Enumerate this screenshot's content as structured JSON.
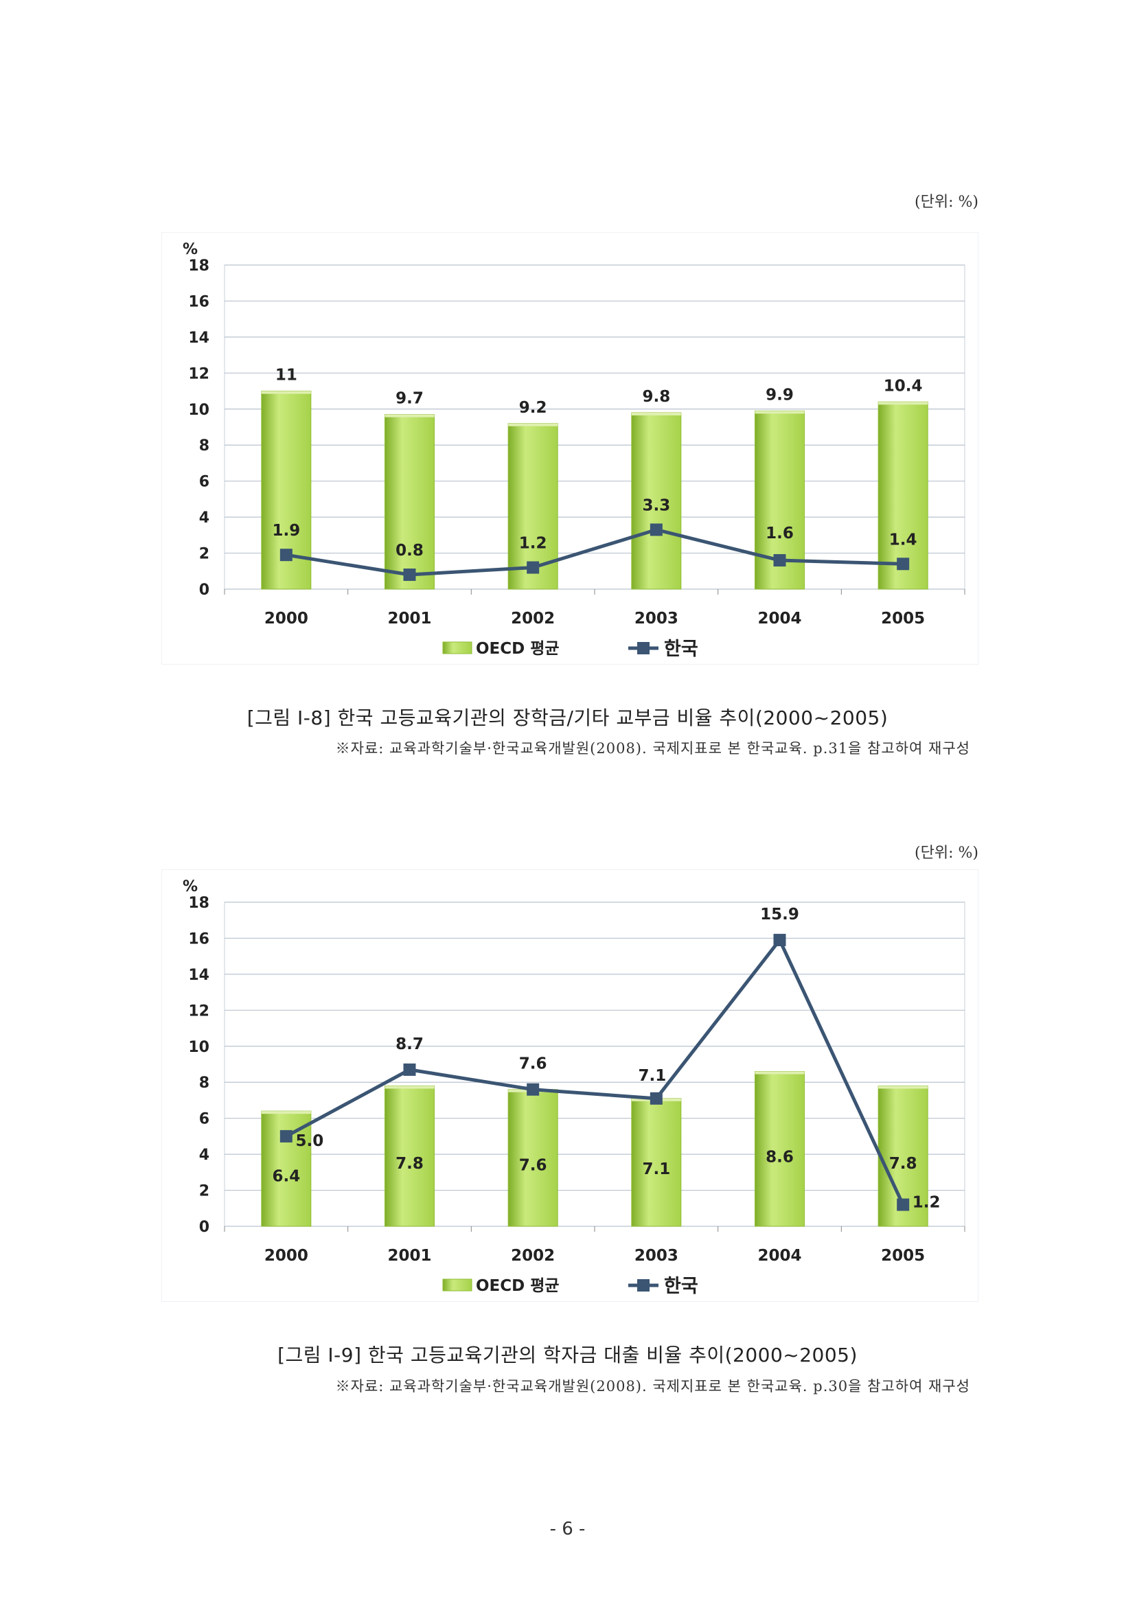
{
  "unit_label_1": "(단위: %)",
  "unit_label_2": "(단위: %)",
  "caption_1": "[그림 Ⅰ-8] 한국 고등교육기관의 장학금/기타 교부금 비율 추이(2000~2005)",
  "source_1": "※자료: 교육과학기술부·한국교육개발원(2008). 국제지표로 본 한국교육. p.31을 참고하여 재구성",
  "caption_2": "[그림 Ⅰ-9] 한국 고등교육기관의 학자금 대출 비율 추이(2000~2005)",
  "source_2": "※자료: 교육과학기술부·한국교육개발원(2008). 국제지표로 본 한국교육. p.30을 참고하여 재구성",
  "page_number": "- 6 -",
  "colors": {
    "bar": "#a6d24a",
    "bar_dark": "#7fae28",
    "line": "#3b5573",
    "grid": "#b9c3cf"
  },
  "chart_data": [
    {
      "type": "bar",
      "ylabel": "%",
      "ylim": [
        0,
        18
      ],
      "yticks": [
        0,
        2,
        4,
        6,
        8,
        10,
        12,
        14,
        16,
        18
      ],
      "categories": [
        "2000",
        "2001",
        "2002",
        "2003",
        "2004",
        "2005"
      ],
      "series": [
        {
          "name": "OECD 평균",
          "kind": "bar",
          "values": [
            11,
            9.7,
            9.2,
            9.8,
            9.9,
            10.4
          ],
          "labels": [
            "11",
            "9.7",
            "9.2",
            "9.8",
            "9.9",
            "10.4"
          ]
        },
        {
          "name": "한국",
          "kind": "line",
          "values": [
            1.9,
            0.8,
            1.2,
            3.3,
            1.6,
            1.4
          ],
          "labels": [
            "1.9",
            "0.8",
            "1.2",
            "3.3",
            "1.6",
            "1.4"
          ]
        }
      ],
      "legend": "bottom",
      "grid": true
    },
    {
      "type": "bar",
      "ylabel": "%",
      "ylim": [
        0,
        18
      ],
      "yticks": [
        0,
        2,
        4,
        6,
        8,
        10,
        12,
        14,
        16,
        18
      ],
      "categories": [
        "2000",
        "2001",
        "2002",
        "2003",
        "2004",
        "2005"
      ],
      "series": [
        {
          "name": "OECD 평균",
          "kind": "bar",
          "values": [
            6.4,
            7.8,
            7.6,
            7.1,
            8.6,
            7.8
          ],
          "labels": [
            "6.4",
            "7.8",
            "7.6",
            "7.1",
            "8.6",
            "7.8"
          ]
        },
        {
          "name": "한국",
          "kind": "line",
          "values": [
            5.0,
            8.7,
            7.6,
            7.1,
            15.9,
            1.2
          ],
          "labels": [
            "5.0",
            "8.7",
            "7.6",
            "7.1",
            "15.9",
            "1.2"
          ]
        }
      ],
      "legend": "bottom",
      "grid": true
    }
  ]
}
